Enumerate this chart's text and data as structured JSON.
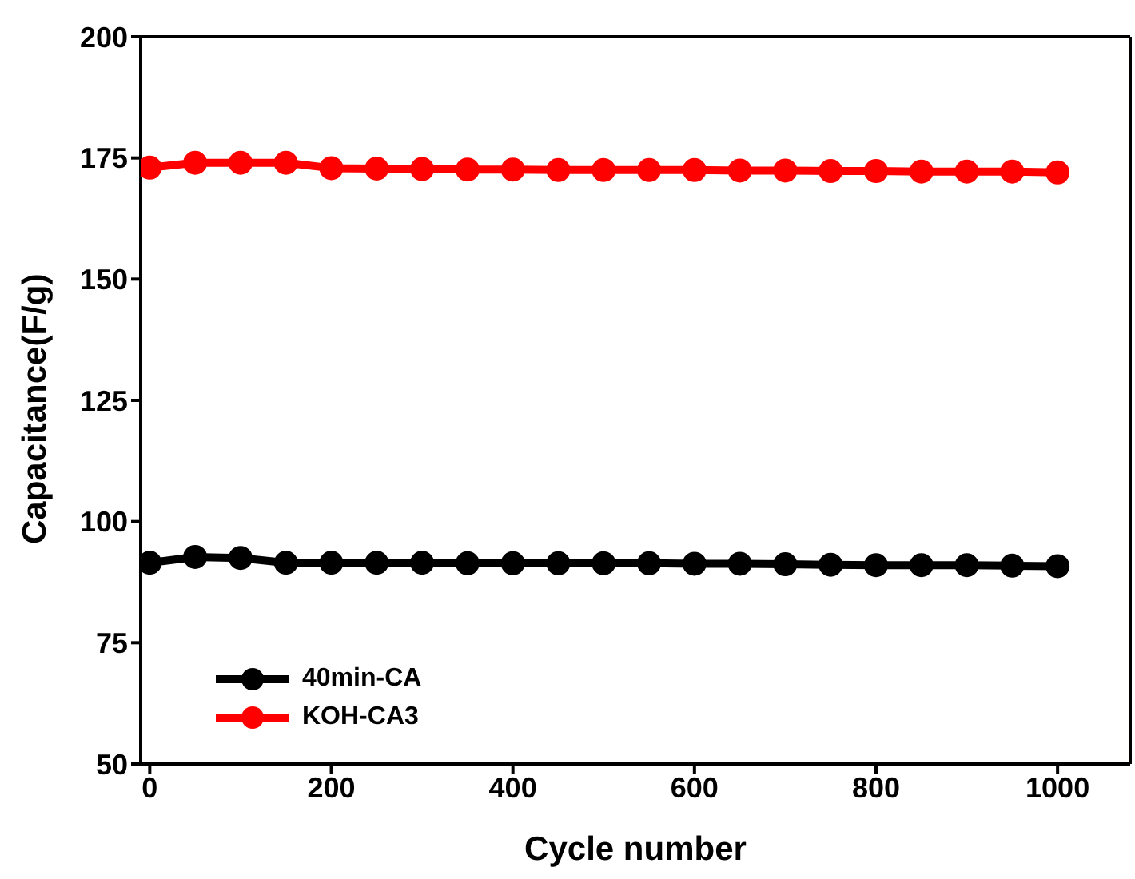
{
  "chart_data": {
    "type": "line",
    "xlabel": "Cycle number",
    "ylabel": "Capacitance(F/g)",
    "x": [
      0,
      50,
      100,
      150,
      200,
      250,
      300,
      350,
      400,
      450,
      500,
      550,
      600,
      650,
      700,
      750,
      800,
      850,
      900,
      950,
      1000
    ],
    "series": [
      {
        "name": "40min-CA",
        "color": "#000000",
        "values": [
          91.5,
          92.7,
          92.5,
          91.5,
          91.5,
          91.5,
          91.5,
          91.4,
          91.4,
          91.4,
          91.4,
          91.4,
          91.3,
          91.3,
          91.2,
          91.1,
          91,
          91,
          91,
          90.9,
          90.8
        ]
      },
      {
        "name": "KOH-CA3",
        "color": "#ff0000",
        "values": [
          173,
          174,
          174,
          174,
          172.9,
          172.8,
          172.7,
          172.6,
          172.6,
          172.5,
          172.5,
          172.5,
          172.5,
          172.4,
          172.4,
          172.3,
          172.3,
          172.2,
          172.2,
          172.2,
          172
        ]
      }
    ],
    "xlim": [
      -10,
      1080
    ],
    "xticks": [
      0,
      200,
      400,
      600,
      800,
      1000
    ],
    "ylim": [
      50,
      200
    ],
    "yticks": [
      50,
      75,
      100,
      125,
      150,
      175,
      200
    ],
    "grid": false,
    "legend": "bottom left",
    "marker": "circle",
    "line_style": "solid"
  }
}
